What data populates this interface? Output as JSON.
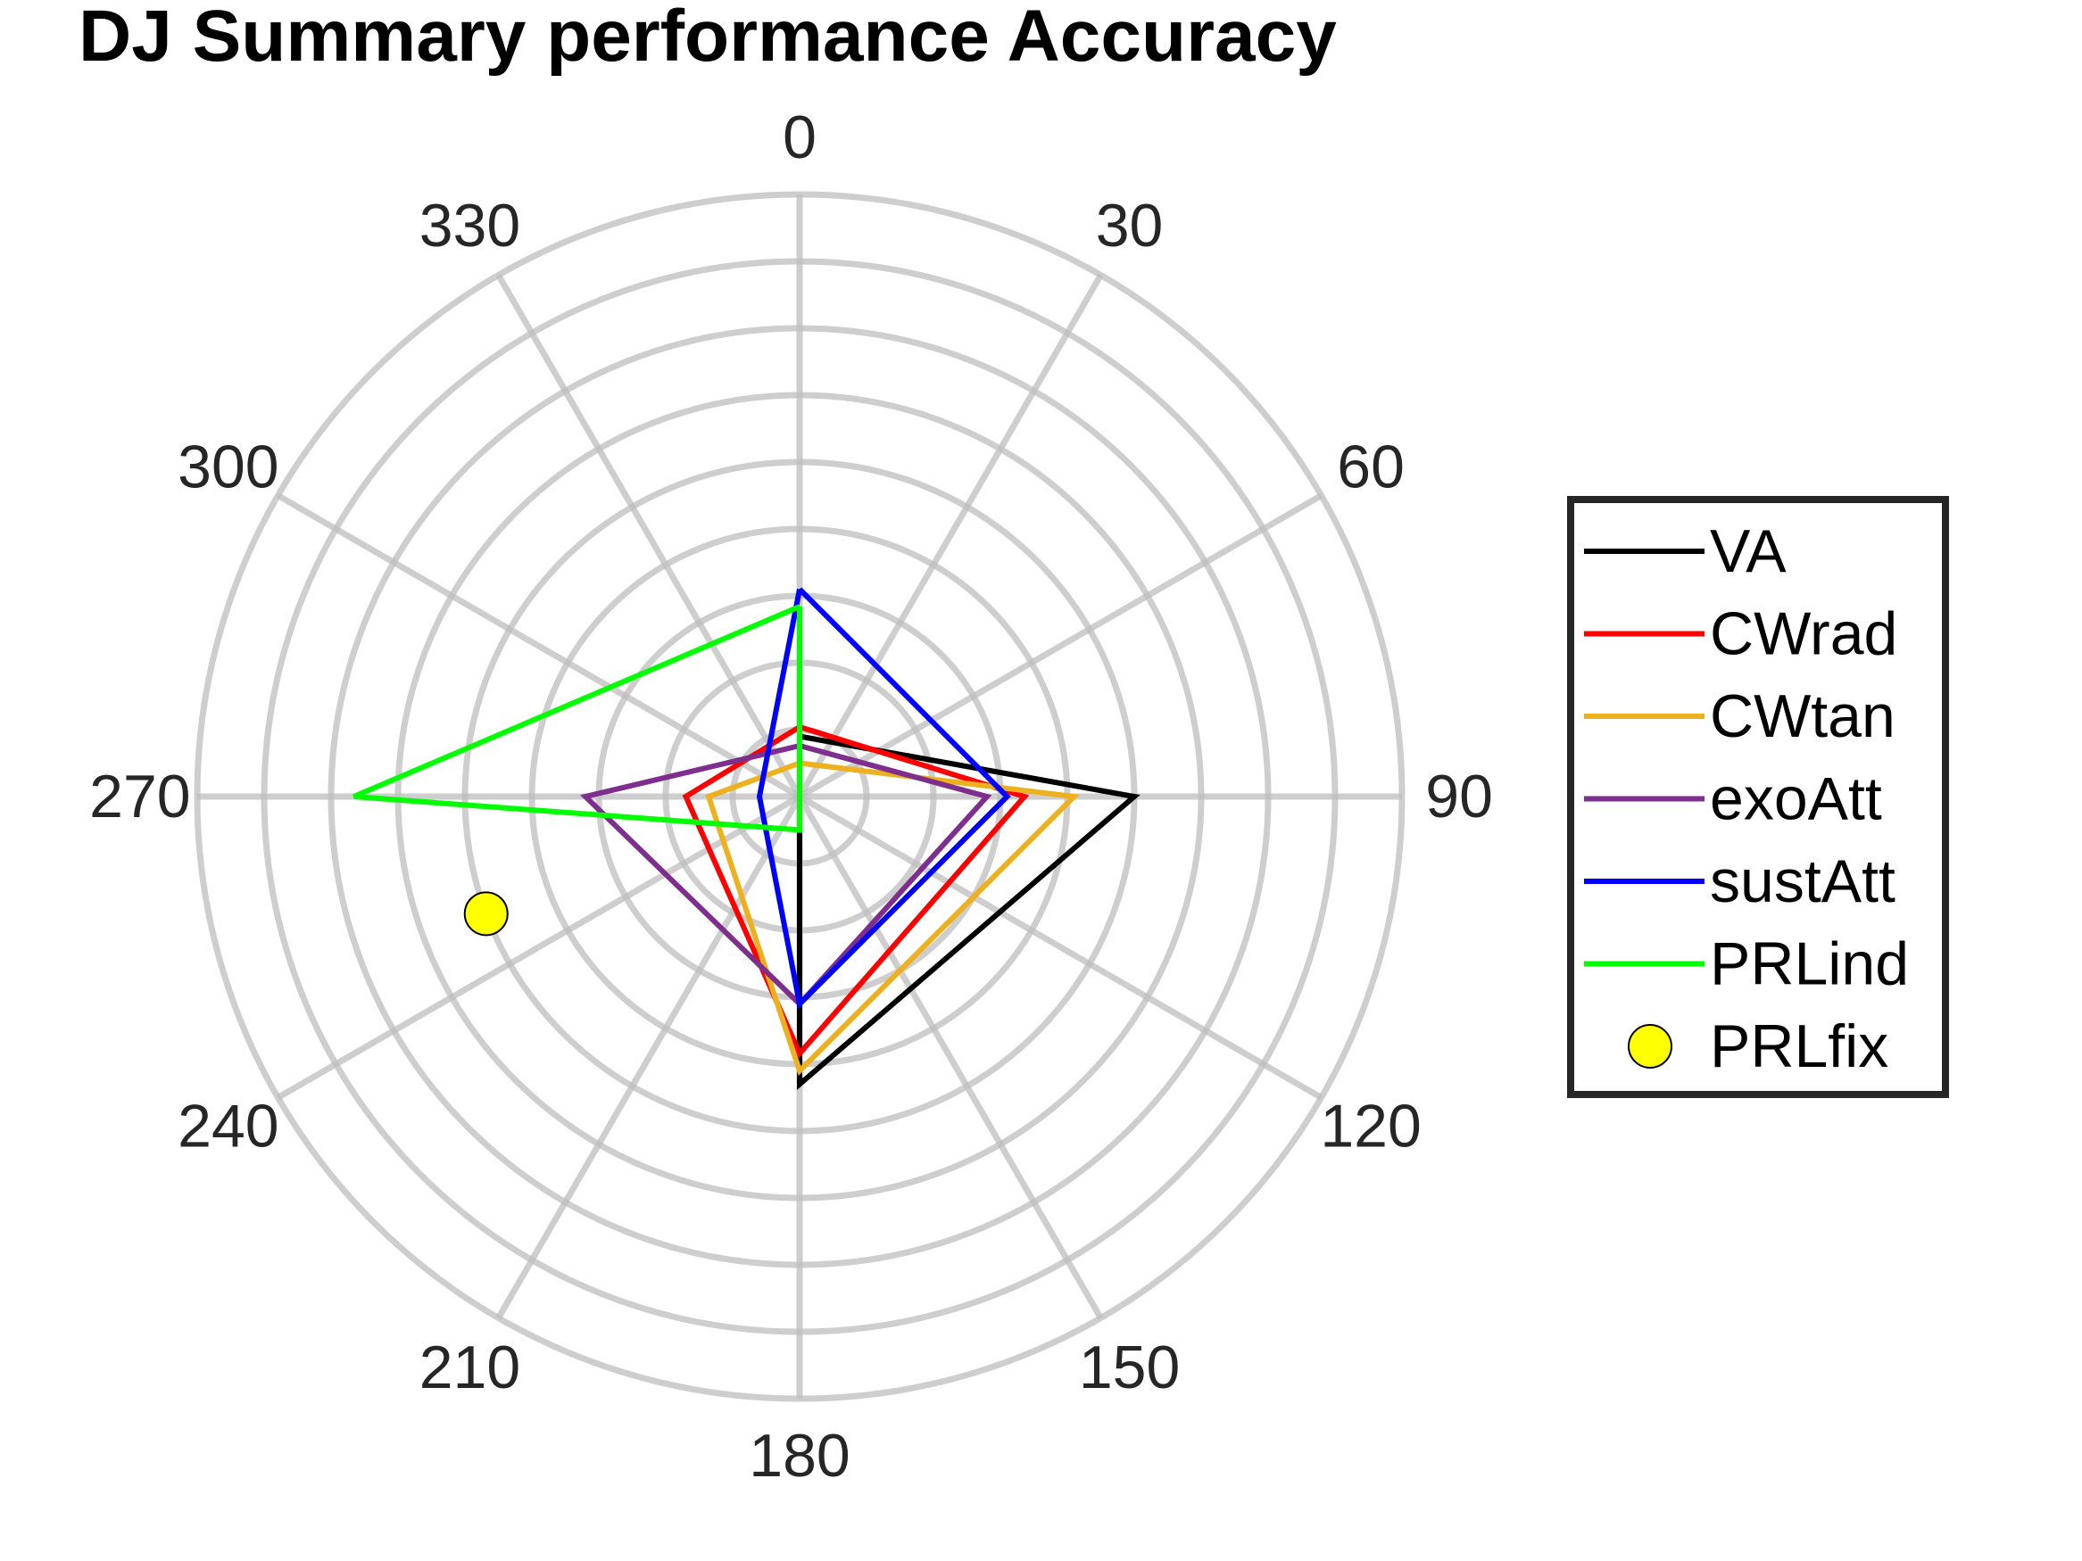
{
  "chart_data": {
    "type": "line",
    "subtype": "polar",
    "title": "DJ Summary performance Accuracy",
    "theta_ticks": [
      0,
      30,
      60,
      90,
      120,
      150,
      180,
      210,
      240,
      270,
      300,
      330
    ],
    "theta_zero": "top",
    "theta_direction": "clockwise",
    "rlim": [
      0,
      4.5
    ],
    "r_rings": [
      0.5,
      1,
      1.5,
      2,
      2.5,
      3,
      3.5,
      4,
      4.5
    ],
    "r_tick_labels_shown": false,
    "grid": true,
    "theta": [
      0,
      90,
      180,
      270
    ],
    "series": [
      {
        "name": "VA",
        "kind": "line",
        "color": "#000000",
        "r": [
          0.45,
          2.5,
          2.15,
          0.0
        ]
      },
      {
        "name": "CWrad",
        "kind": "line",
        "color": "#ff0000",
        "r": [
          0.52,
          1.68,
          1.92,
          0.85
        ]
      },
      {
        "name": "CWtan",
        "kind": "line",
        "color": "#edb120",
        "r": [
          0.25,
          2.05,
          2.05,
          0.68
        ]
      },
      {
        "name": "exoAtt",
        "kind": "line",
        "color": "#7e2f8e",
        "r": [
          0.38,
          1.4,
          1.55,
          1.6
        ]
      },
      {
        "name": "sustAtt",
        "kind": "line",
        "color": "#0000ff",
        "r": [
          1.55,
          1.55,
          1.55,
          0.3
        ]
      },
      {
        "name": "PRLind",
        "kind": "line",
        "color": "#00ff00",
        "r": [
          1.42,
          0.0,
          0.25,
          3.33
        ]
      },
      {
        "name": "PRLfix",
        "kind": "scatter",
        "color": "#ffff00",
        "theta": [
          249.5
        ],
        "r": [
          2.5
        ]
      }
    ],
    "legend": {
      "position": "right"
    }
  }
}
